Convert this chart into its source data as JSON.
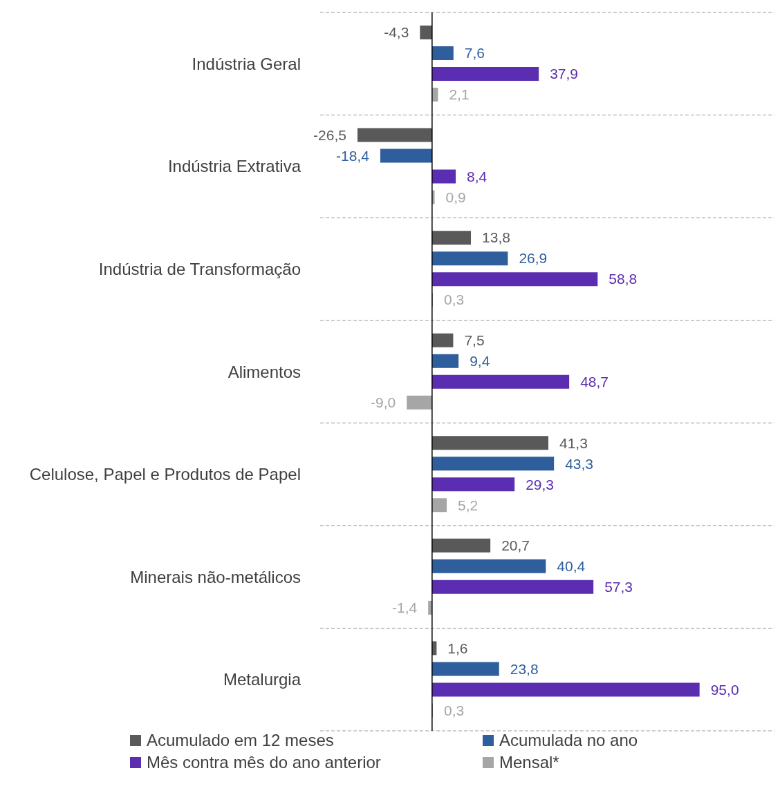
{
  "chart_data": {
    "type": "bar",
    "orientation": "horizontal",
    "categories": [
      "Indústria Geral",
      "Indústria Extrativa",
      "Indústria de Transformação",
      "Alimentos",
      "Celulose, Papel e Produtos de Papel",
      "Minerais não-metálicos",
      "Metalurgia"
    ],
    "series": [
      {
        "name": "Acumulado em 12 meses",
        "color": "#595959",
        "values": [
          -4.3,
          -26.5,
          13.8,
          7.5,
          41.3,
          20.7,
          1.6
        ],
        "value_labels": [
          "-4,3",
          "-26,5",
          "13,8",
          "7,5",
          "41,3",
          "20,7",
          "1,6"
        ]
      },
      {
        "name": "Acumulada no ano",
        "color": "#2e5e9c",
        "values": [
          7.6,
          -18.4,
          26.9,
          9.4,
          43.3,
          40.4,
          23.8
        ],
        "value_labels": [
          "7,6",
          "-18,4",
          "26,9",
          "9,4",
          "43,3",
          "40,4",
          "23,8"
        ]
      },
      {
        "name": "Mês contra mês do ano anterior",
        "color": "#5b2db0",
        "values": [
          37.9,
          8.4,
          58.8,
          48.7,
          29.3,
          57.3,
          95.0
        ],
        "value_labels": [
          "37,9",
          "8,4",
          "58,8",
          "48,7",
          "29,3",
          "57,3",
          "95,0"
        ]
      },
      {
        "name": "Mensal*",
        "color": "#a6a6a6",
        "values": [
          2.1,
          0.9,
          0.3,
          -9.0,
          5.2,
          -1.4,
          0.3
        ],
        "value_labels": [
          "2,1",
          "0,9",
          "0,3",
          "-9,0",
          "5,2",
          "-1,4",
          "0,3"
        ]
      }
    ],
    "grid": "y",
    "legend": "bottom"
  }
}
